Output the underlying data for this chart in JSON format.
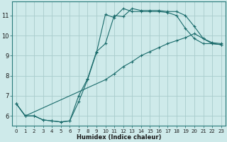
{
  "xlabel": "Humidex (Indice chaleur)",
  "bg_color": "#ceeaea",
  "line_color": "#1a6b6b",
  "grid_color": "#a8cccc",
  "xlim": [
    -0.5,
    23.5
  ],
  "ylim": [
    5.5,
    11.7
  ],
  "xticks": [
    0,
    1,
    2,
    3,
    4,
    5,
    6,
    7,
    8,
    9,
    10,
    11,
    12,
    13,
    14,
    15,
    16,
    17,
    18,
    19,
    20,
    21,
    22,
    23
  ],
  "yticks": [
    6,
    7,
    8,
    9,
    10,
    11
  ],
  "line1_x": [
    0,
    1,
    2,
    3,
    4,
    5,
    6,
    7,
    8,
    9,
    10,
    11,
    12,
    13,
    14,
    15,
    16,
    17,
    18,
    19,
    20,
    21,
    22,
    23
  ],
  "line1_y": [
    6.6,
    6.0,
    6.0,
    5.8,
    5.75,
    5.7,
    5.75,
    7.0,
    7.85,
    9.2,
    9.6,
    11.0,
    10.95,
    11.35,
    11.25,
    11.25,
    11.25,
    11.2,
    11.2,
    11.0,
    10.45,
    9.85,
    9.65,
    9.6
  ],
  "line2_x": [
    0,
    1,
    2,
    3,
    4,
    5,
    6,
    7,
    8,
    9,
    10,
    11,
    12,
    13,
    14,
    15,
    16,
    17,
    18,
    19,
    20,
    21,
    22,
    23
  ],
  "line2_y": [
    6.6,
    6.0,
    6.0,
    5.8,
    5.75,
    5.7,
    5.75,
    6.7,
    7.8,
    9.15,
    11.05,
    10.9,
    11.35,
    11.2,
    11.2,
    11.2,
    11.2,
    11.15,
    11.0,
    10.35,
    9.85,
    9.6,
    9.6,
    9.55
  ],
  "line3_x": [
    0,
    1,
    10,
    11,
    12,
    13,
    14,
    15,
    16,
    17,
    18,
    19,
    20,
    21,
    22,
    23
  ],
  "line3_y": [
    6.6,
    6.0,
    7.8,
    8.1,
    8.45,
    8.7,
    9.0,
    9.2,
    9.4,
    9.6,
    9.75,
    9.9,
    10.1,
    9.85,
    9.6,
    9.55
  ]
}
